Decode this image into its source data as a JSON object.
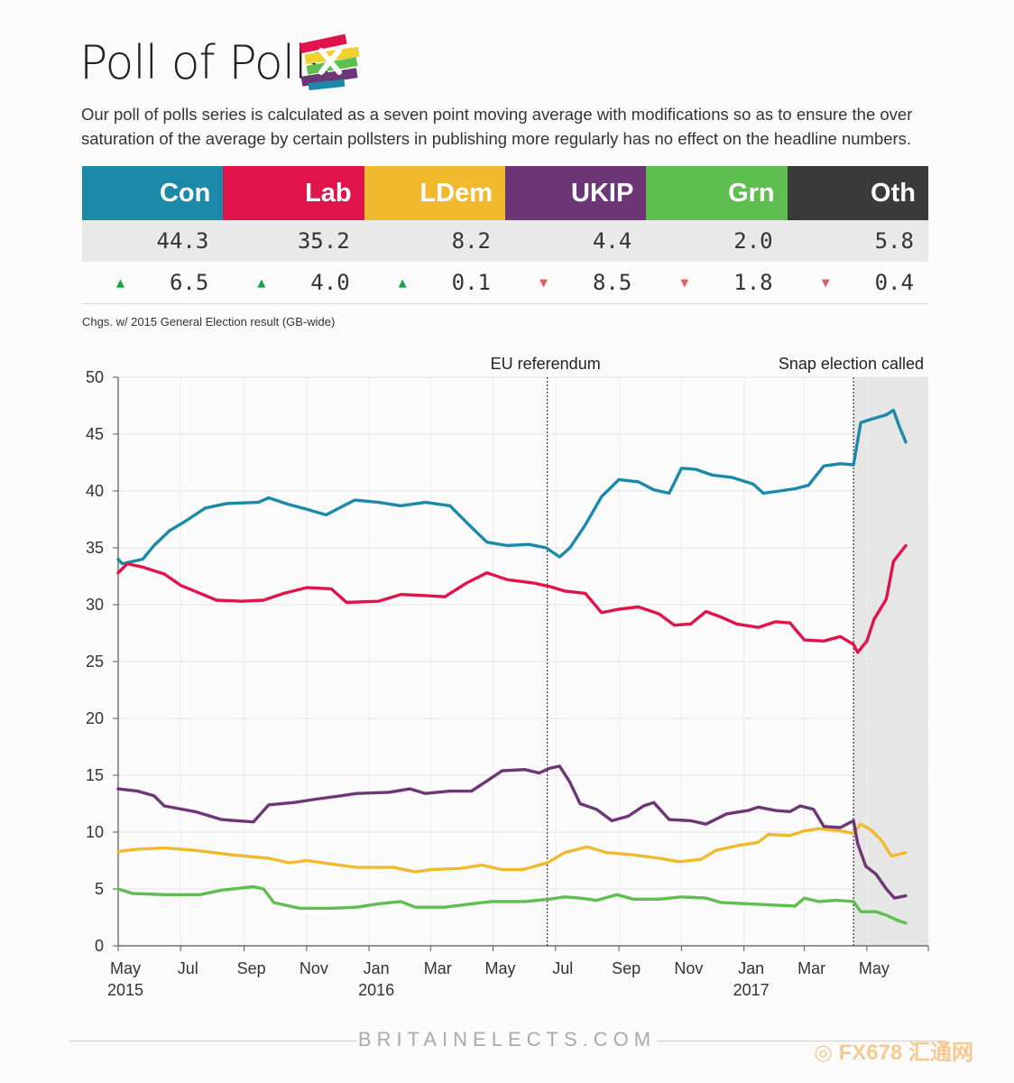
{
  "header": {
    "title": "Poll of Polls",
    "intro": "Our poll of polls series is calculated as a seven point moving average with modifications so as to ensure the over saturation of the average by certain pollsters in publishing more regularly has no effect on the headline numbers."
  },
  "parties": [
    {
      "name": "Con",
      "color": "#1b8aa8",
      "value": "44.3",
      "change": "6.5",
      "direction": "up"
    },
    {
      "name": "Lab",
      "color": "#e0144a",
      "value": "35.2",
      "change": "4.0",
      "direction": "up"
    },
    {
      "name": "LDem",
      "color": "#f0b92e",
      "value": "8.2",
      "change": "0.1",
      "direction": "up"
    },
    {
      "name": "UKIP",
      "color": "#6d3677",
      "value": "4.4",
      "change": "8.5",
      "direction": "down"
    },
    {
      "name": "Grn",
      "color": "#5fbe50",
      "value": "2.0",
      "change": "1.8",
      "direction": "down"
    },
    {
      "name": "Oth",
      "color": "#3a3a3a",
      "value": "5.8",
      "change": "0.4",
      "direction": "down"
    }
  ],
  "note": "Chgs. w/ 2015 General Election result (GB-wide)",
  "footer": {
    "site": "BRITAINELECTS.COM",
    "watermark": "FX678 汇通网"
  },
  "chart_data": {
    "type": "line",
    "title": "",
    "xlabel": "",
    "ylabel": "",
    "ylim": [
      0,
      50
    ],
    "yticks": [
      0,
      5,
      10,
      15,
      20,
      25,
      30,
      35,
      40,
      45,
      50
    ],
    "xlim": [
      "2015-05-01",
      "2017-06-30"
    ],
    "xticks": [
      {
        "date": "2015-05-01",
        "label": "May",
        "year": "2015"
      },
      {
        "date": "2015-07-01",
        "label": "Jul",
        "year": ""
      },
      {
        "date": "2015-09-01",
        "label": "Sep",
        "year": ""
      },
      {
        "date": "2015-11-01",
        "label": "Nov",
        "year": ""
      },
      {
        "date": "2016-01-01",
        "label": "Jan",
        "year": "2016"
      },
      {
        "date": "2016-03-01",
        "label": "Mar",
        "year": ""
      },
      {
        "date": "2016-05-01",
        "label": "May",
        "year": ""
      },
      {
        "date": "2016-07-01",
        "label": "Jul",
        "year": ""
      },
      {
        "date": "2016-09-01",
        "label": "Sep",
        "year": ""
      },
      {
        "date": "2016-11-01",
        "label": "Nov",
        "year": ""
      },
      {
        "date": "2017-01-01",
        "label": "Jan",
        "year": "2017"
      },
      {
        "date": "2017-03-01",
        "label": "Mar",
        "year": ""
      },
      {
        "date": "2017-05-01",
        "label": "May",
        "year": ""
      }
    ],
    "grid": true,
    "annotations": [
      {
        "date": "2016-06-23",
        "label": "EU referendum"
      },
      {
        "date": "2017-04-18",
        "label": "Snap election called"
      }
    ],
    "shaded_from": "2017-04-18",
    "series": [
      {
        "name": "Con",
        "color": "#1b8aa8",
        "points": [
          [
            "2015-05-01",
            34
          ],
          [
            "2015-05-05",
            33.6
          ],
          [
            "2015-05-25",
            34
          ],
          [
            "2015-06-05",
            35.2
          ],
          [
            "2015-06-20",
            36.5
          ],
          [
            "2015-07-05",
            37.3
          ],
          [
            "2015-07-25",
            38.5
          ],
          [
            "2015-08-15",
            38.9
          ],
          [
            "2015-09-15",
            39
          ],
          [
            "2015-09-25",
            39.4
          ],
          [
            "2015-10-15",
            38.8
          ],
          [
            "2015-11-01",
            38.4
          ],
          [
            "2015-11-20",
            37.9
          ],
          [
            "2015-12-05",
            38.6
          ],
          [
            "2015-12-18",
            39.2
          ],
          [
            "2016-01-10",
            39
          ],
          [
            "2016-02-01",
            38.7
          ],
          [
            "2016-02-25",
            39
          ],
          [
            "2016-03-20",
            38.7
          ],
          [
            "2016-04-10",
            36.8
          ],
          [
            "2016-04-25",
            35.5
          ],
          [
            "2016-05-15",
            35.2
          ],
          [
            "2016-06-05",
            35.3
          ],
          [
            "2016-06-22",
            35
          ],
          [
            "2016-07-05",
            34.2
          ],
          [
            "2016-07-15",
            35
          ],
          [
            "2016-07-30",
            37
          ],
          [
            "2016-08-15",
            39.5
          ],
          [
            "2016-09-01",
            41
          ],
          [
            "2016-09-20",
            40.8
          ],
          [
            "2016-10-05",
            40.1
          ],
          [
            "2016-10-20",
            39.8
          ],
          [
            "2016-11-01",
            42
          ],
          [
            "2016-11-15",
            41.9
          ],
          [
            "2016-12-01",
            41.4
          ],
          [
            "2016-12-20",
            41.2
          ],
          [
            "2017-01-10",
            40.6
          ],
          [
            "2017-01-20",
            39.8
          ],
          [
            "2017-02-05",
            40
          ],
          [
            "2017-02-20",
            40.2
          ],
          [
            "2017-03-05",
            40.5
          ],
          [
            "2017-03-20",
            42.2
          ],
          [
            "2017-04-05",
            42.4
          ],
          [
            "2017-04-18",
            42.3
          ],
          [
            "2017-04-25",
            46
          ],
          [
            "2017-05-05",
            46.3
          ],
          [
            "2017-05-20",
            46.7
          ],
          [
            "2017-05-27",
            47.1
          ],
          [
            "2017-06-02",
            45.6
          ],
          [
            "2017-06-08",
            44.3
          ]
        ]
      },
      {
        "name": "Lab",
        "color": "#e0144a",
        "points": [
          [
            "2015-05-01",
            32.8
          ],
          [
            "2015-05-10",
            33.6
          ],
          [
            "2015-05-25",
            33.3
          ],
          [
            "2015-06-15",
            32.7
          ],
          [
            "2015-07-01",
            31.7
          ],
          [
            "2015-07-20",
            31
          ],
          [
            "2015-08-05",
            30.4
          ],
          [
            "2015-08-30",
            30.3
          ],
          [
            "2015-09-20",
            30.4
          ],
          [
            "2015-10-10",
            31
          ],
          [
            "2015-11-01",
            31.5
          ],
          [
            "2015-11-25",
            31.4
          ],
          [
            "2015-12-10",
            30.2
          ],
          [
            "2016-01-10",
            30.3
          ],
          [
            "2016-02-01",
            30.9
          ],
          [
            "2016-02-25",
            30.8
          ],
          [
            "2016-03-15",
            30.7
          ],
          [
            "2016-04-05",
            31.9
          ],
          [
            "2016-04-25",
            32.8
          ],
          [
            "2016-05-15",
            32.2
          ],
          [
            "2016-06-10",
            31.9
          ],
          [
            "2016-06-25",
            31.6
          ],
          [
            "2016-07-10",
            31.2
          ],
          [
            "2016-07-30",
            31
          ],
          [
            "2016-08-15",
            29.3
          ],
          [
            "2016-09-01",
            29.6
          ],
          [
            "2016-09-20",
            29.8
          ],
          [
            "2016-10-10",
            29.2
          ],
          [
            "2016-10-25",
            28.2
          ],
          [
            "2016-11-10",
            28.3
          ],
          [
            "2016-11-25",
            29.4
          ],
          [
            "2016-12-10",
            28.9
          ],
          [
            "2016-12-25",
            28.3
          ],
          [
            "2017-01-15",
            28
          ],
          [
            "2017-02-01",
            28.5
          ],
          [
            "2017-02-15",
            28.4
          ],
          [
            "2017-03-01",
            26.9
          ],
          [
            "2017-03-20",
            26.8
          ],
          [
            "2017-04-05",
            27.2
          ],
          [
            "2017-04-18",
            26.5
          ],
          [
            "2017-04-22",
            25.8
          ],
          [
            "2017-05-01",
            26.8
          ],
          [
            "2017-05-08",
            28.7
          ],
          [
            "2017-05-20",
            30.5
          ],
          [
            "2017-05-27",
            33.8
          ],
          [
            "2017-06-08",
            35.2
          ]
        ]
      },
      {
        "name": "LDem",
        "color": "#f0b92e",
        "points": [
          [
            "2015-05-01",
            8.3
          ],
          [
            "2015-05-20",
            8.5
          ],
          [
            "2015-06-15",
            8.6
          ],
          [
            "2015-07-15",
            8.4
          ],
          [
            "2015-08-20",
            8
          ],
          [
            "2015-09-25",
            7.7
          ],
          [
            "2015-10-15",
            7.3
          ],
          [
            "2015-11-01",
            7.5
          ],
          [
            "2015-11-25",
            7.2
          ],
          [
            "2015-12-20",
            6.9
          ],
          [
            "2016-01-25",
            6.9
          ],
          [
            "2016-02-15",
            6.5
          ],
          [
            "2016-03-01",
            6.7
          ],
          [
            "2016-03-30",
            6.8
          ],
          [
            "2016-04-20",
            7.1
          ],
          [
            "2016-05-10",
            6.7
          ],
          [
            "2016-05-30",
            6.7
          ],
          [
            "2016-06-23",
            7.3
          ],
          [
            "2016-07-10",
            8.2
          ],
          [
            "2016-08-01",
            8.7
          ],
          [
            "2016-08-20",
            8.2
          ],
          [
            "2016-09-15",
            8
          ],
          [
            "2016-10-10",
            7.7
          ],
          [
            "2016-10-30",
            7.4
          ],
          [
            "2016-11-20",
            7.6
          ],
          [
            "2016-12-05",
            8.4
          ],
          [
            "2016-12-25",
            8.8
          ],
          [
            "2017-01-15",
            9.1
          ],
          [
            "2017-01-25",
            9.8
          ],
          [
            "2017-02-15",
            9.7
          ],
          [
            "2017-03-01",
            10.1
          ],
          [
            "2017-03-15",
            10.3
          ],
          [
            "2017-04-05",
            10.1
          ],
          [
            "2017-04-18",
            9.9
          ],
          [
            "2017-04-25",
            10.7
          ],
          [
            "2017-05-05",
            10.2
          ],
          [
            "2017-05-15",
            9.3
          ],
          [
            "2017-05-25",
            7.9
          ],
          [
            "2017-06-08",
            8.2
          ]
        ]
      },
      {
        "name": "UKIP",
        "color": "#6d3677",
        "points": [
          [
            "2015-05-01",
            13.8
          ],
          [
            "2015-05-20",
            13.6
          ],
          [
            "2015-06-05",
            13.2
          ],
          [
            "2015-06-15",
            12.3
          ],
          [
            "2015-07-15",
            11.8
          ],
          [
            "2015-08-10",
            11.1
          ],
          [
            "2015-08-25",
            11
          ],
          [
            "2015-09-10",
            10.9
          ],
          [
            "2015-09-25",
            12.4
          ],
          [
            "2015-10-20",
            12.6
          ],
          [
            "2015-11-10",
            12.9
          ],
          [
            "2015-12-05",
            13.2
          ],
          [
            "2015-12-20",
            13.4
          ],
          [
            "2016-01-20",
            13.5
          ],
          [
            "2016-02-10",
            13.8
          ],
          [
            "2016-02-25",
            13.4
          ],
          [
            "2016-03-20",
            13.6
          ],
          [
            "2016-04-10",
            13.6
          ],
          [
            "2016-04-25",
            14.5
          ],
          [
            "2016-05-10",
            15.4
          ],
          [
            "2016-06-01",
            15.5
          ],
          [
            "2016-06-15",
            15.2
          ],
          [
            "2016-06-25",
            15.6
          ],
          [
            "2016-07-05",
            15.8
          ],
          [
            "2016-07-15",
            14.4
          ],
          [
            "2016-07-25",
            12.5
          ],
          [
            "2016-08-10",
            12
          ],
          [
            "2016-08-25",
            11
          ],
          [
            "2016-09-10",
            11.4
          ],
          [
            "2016-09-25",
            12.3
          ],
          [
            "2016-10-05",
            12.6
          ],
          [
            "2016-10-20",
            11.1
          ],
          [
            "2016-11-10",
            11
          ],
          [
            "2016-11-25",
            10.7
          ],
          [
            "2016-12-15",
            11.6
          ],
          [
            "2017-01-05",
            11.9
          ],
          [
            "2017-01-15",
            12.2
          ],
          [
            "2017-02-01",
            11.9
          ],
          [
            "2017-02-15",
            11.8
          ],
          [
            "2017-02-25",
            12.3
          ],
          [
            "2017-03-10",
            12
          ],
          [
            "2017-03-20",
            10.5
          ],
          [
            "2017-04-05",
            10.4
          ],
          [
            "2017-04-18",
            11
          ],
          [
            "2017-04-22",
            9
          ],
          [
            "2017-04-30",
            7
          ],
          [
            "2017-05-10",
            6.3
          ],
          [
            "2017-05-20",
            5
          ],
          [
            "2017-05-28",
            4.2
          ],
          [
            "2017-06-08",
            4.4
          ]
        ]
      },
      {
        "name": "Grn",
        "color": "#5fbe50",
        "points": [
          [
            "2015-05-01",
            5
          ],
          [
            "2015-05-15",
            4.6
          ],
          [
            "2015-06-15",
            4.5
          ],
          [
            "2015-07-20",
            4.5
          ],
          [
            "2015-08-10",
            4.9
          ],
          [
            "2015-09-10",
            5.2
          ],
          [
            "2015-09-20",
            5
          ],
          [
            "2015-09-30",
            3.8
          ],
          [
            "2015-10-25",
            3.3
          ],
          [
            "2015-11-25",
            3.3
          ],
          [
            "2015-12-20",
            3.4
          ],
          [
            "2016-01-10",
            3.7
          ],
          [
            "2016-02-01",
            3.9
          ],
          [
            "2016-02-15",
            3.4
          ],
          [
            "2016-03-15",
            3.4
          ],
          [
            "2016-04-10",
            3.7
          ],
          [
            "2016-04-30",
            3.9
          ],
          [
            "2016-06-01",
            3.9
          ],
          [
            "2016-06-25",
            4.1
          ],
          [
            "2016-07-10",
            4.3
          ],
          [
            "2016-07-25",
            4.2
          ],
          [
            "2016-08-10",
            4
          ],
          [
            "2016-08-30",
            4.5
          ],
          [
            "2016-09-15",
            4.1
          ],
          [
            "2016-10-10",
            4.1
          ],
          [
            "2016-11-01",
            4.3
          ],
          [
            "2016-11-25",
            4.2
          ],
          [
            "2016-12-10",
            3.8
          ],
          [
            "2017-01-05",
            3.7
          ],
          [
            "2017-01-25",
            3.6
          ],
          [
            "2017-02-20",
            3.5
          ],
          [
            "2017-03-01",
            4.2
          ],
          [
            "2017-03-15",
            3.9
          ],
          [
            "2017-04-01",
            4
          ],
          [
            "2017-04-18",
            3.9
          ],
          [
            "2017-04-25",
            3
          ],
          [
            "2017-05-10",
            3
          ],
          [
            "2017-05-20",
            2.7
          ],
          [
            "2017-06-01",
            2.2
          ],
          [
            "2017-06-08",
            2
          ]
        ]
      }
    ]
  }
}
